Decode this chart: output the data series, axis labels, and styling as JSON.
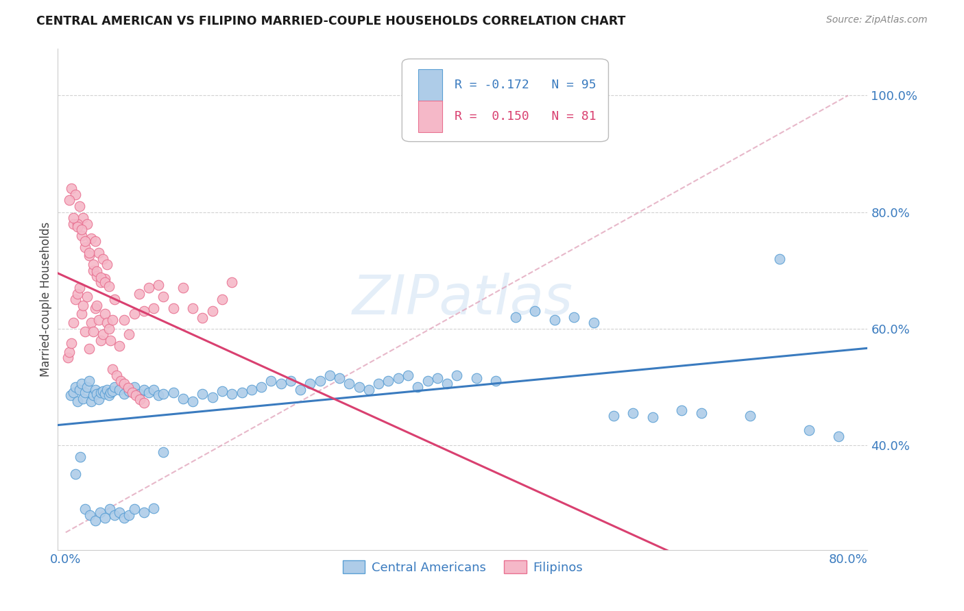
{
  "title": "CENTRAL AMERICAN VS FILIPINO MARRIED-COUPLE HOUSEHOLDS CORRELATION CHART",
  "source": "Source: ZipAtlas.com",
  "ylabel": "Married-couple Households",
  "ytick_labels": [
    "100.0%",
    "80.0%",
    "60.0%",
    "40.0%"
  ],
  "ytick_values": [
    1.0,
    0.8,
    0.6,
    0.4
  ],
  "ylim": [
    0.22,
    1.08
  ],
  "xlim": [
    -0.008,
    0.82
  ],
  "legend_r_blue": "R = -0.172",
  "legend_n_blue": "N = 95",
  "legend_r_pink": "R =  0.150",
  "legend_n_pink": "N = 81",
  "blue_fill": "#aecce8",
  "pink_fill": "#f5b8c8",
  "blue_edge": "#5a9fd4",
  "pink_edge": "#e87090",
  "blue_line": "#3a7bbf",
  "pink_line": "#d94070",
  "dash_color": "#e0a0b8",
  "watermark": "ZIPatlas",
  "blue_scatter_x": [
    0.005,
    0.008,
    0.01,
    0.012,
    0.014,
    0.016,
    0.018,
    0.02,
    0.022,
    0.024,
    0.026,
    0.028,
    0.03,
    0.032,
    0.034,
    0.036,
    0.038,
    0.04,
    0.042,
    0.044,
    0.046,
    0.048,
    0.05,
    0.055,
    0.06,
    0.065,
    0.07,
    0.075,
    0.08,
    0.085,
    0.09,
    0.095,
    0.1,
    0.11,
    0.12,
    0.13,
    0.14,
    0.15,
    0.16,
    0.17,
    0.18,
    0.19,
    0.2,
    0.21,
    0.22,
    0.23,
    0.24,
    0.25,
    0.26,
    0.27,
    0.28,
    0.29,
    0.3,
    0.31,
    0.32,
    0.33,
    0.34,
    0.35,
    0.36,
    0.37,
    0.38,
    0.39,
    0.4,
    0.42,
    0.44,
    0.46,
    0.48,
    0.5,
    0.52,
    0.54,
    0.56,
    0.58,
    0.6,
    0.63,
    0.65,
    0.7,
    0.73,
    0.76,
    0.79,
    0.01,
    0.015,
    0.02,
    0.025,
    0.03,
    0.035,
    0.04,
    0.045,
    0.05,
    0.055,
    0.06,
    0.065,
    0.07,
    0.08,
    0.09,
    0.1
  ],
  "blue_scatter_y": [
    0.485,
    0.49,
    0.5,
    0.475,
    0.495,
    0.505,
    0.48,
    0.49,
    0.5,
    0.51,
    0.475,
    0.485,
    0.495,
    0.488,
    0.478,
    0.49,
    0.492,
    0.488,
    0.495,
    0.485,
    0.49,
    0.492,
    0.5,
    0.495,
    0.488,
    0.492,
    0.5,
    0.488,
    0.495,
    0.49,
    0.495,
    0.485,
    0.488,
    0.49,
    0.48,
    0.475,
    0.488,
    0.482,
    0.492,
    0.488,
    0.49,
    0.495,
    0.5,
    0.51,
    0.505,
    0.51,
    0.495,
    0.505,
    0.51,
    0.52,
    0.515,
    0.505,
    0.5,
    0.495,
    0.505,
    0.51,
    0.515,
    0.52,
    0.5,
    0.51,
    0.515,
    0.505,
    0.52,
    0.515,
    0.51,
    0.62,
    0.63,
    0.615,
    0.62,
    0.61,
    0.45,
    0.455,
    0.448,
    0.46,
    0.455,
    0.45,
    0.72,
    0.425,
    0.415,
    0.35,
    0.38,
    0.29,
    0.28,
    0.27,
    0.285,
    0.275,
    0.29,
    0.28,
    0.285,
    0.275,
    0.28,
    0.29,
    0.285,
    0.292,
    0.388
  ],
  "pink_scatter_x": [
    0.002,
    0.004,
    0.006,
    0.008,
    0.01,
    0.012,
    0.014,
    0.016,
    0.018,
    0.02,
    0.022,
    0.024,
    0.026,
    0.028,
    0.03,
    0.032,
    0.034,
    0.036,
    0.038,
    0.04,
    0.042,
    0.044,
    0.046,
    0.048,
    0.05,
    0.055,
    0.06,
    0.065,
    0.07,
    0.075,
    0.08,
    0.085,
    0.09,
    0.095,
    0.1,
    0.11,
    0.12,
    0.13,
    0.14,
    0.15,
    0.16,
    0.17,
    0.006,
    0.01,
    0.014,
    0.018,
    0.022,
    0.026,
    0.03,
    0.034,
    0.038,
    0.042,
    0.008,
    0.012,
    0.016,
    0.02,
    0.024,
    0.028,
    0.032,
    0.036,
    0.04,
    0.004,
    0.008,
    0.012,
    0.016,
    0.02,
    0.024,
    0.028,
    0.032,
    0.036,
    0.04,
    0.044,
    0.048,
    0.052,
    0.056,
    0.06,
    0.064,
    0.068,
    0.072,
    0.076,
    0.08
  ],
  "pink_scatter_y": [
    0.55,
    0.56,
    0.575,
    0.61,
    0.65,
    0.66,
    0.67,
    0.625,
    0.64,
    0.595,
    0.655,
    0.565,
    0.61,
    0.595,
    0.635,
    0.64,
    0.615,
    0.58,
    0.59,
    0.625,
    0.61,
    0.6,
    0.58,
    0.615,
    0.65,
    0.57,
    0.615,
    0.59,
    0.625,
    0.66,
    0.63,
    0.67,
    0.635,
    0.675,
    0.655,
    0.635,
    0.67,
    0.635,
    0.618,
    0.63,
    0.65,
    0.68,
    0.84,
    0.83,
    0.81,
    0.79,
    0.78,
    0.755,
    0.75,
    0.73,
    0.72,
    0.71,
    0.78,
    0.78,
    0.76,
    0.74,
    0.725,
    0.7,
    0.69,
    0.68,
    0.685,
    0.82,
    0.79,
    0.775,
    0.77,
    0.75,
    0.73,
    0.71,
    0.698,
    0.688,
    0.68,
    0.672,
    0.53,
    0.52,
    0.51,
    0.505,
    0.498,
    0.49,
    0.485,
    0.478,
    0.472
  ]
}
